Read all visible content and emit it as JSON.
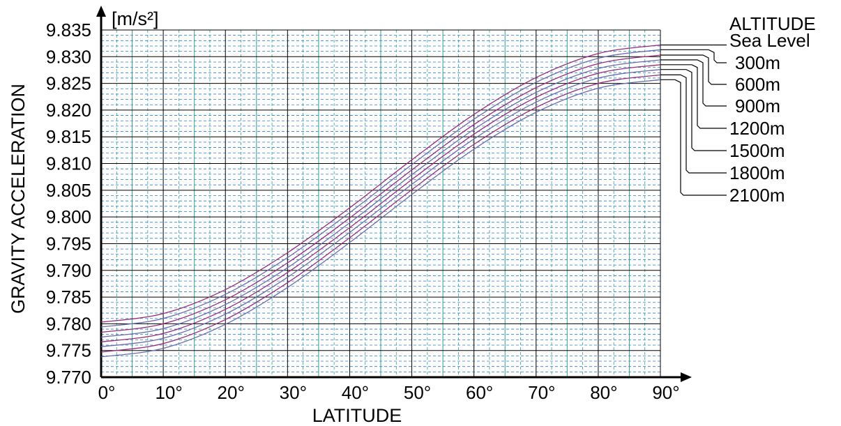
{
  "chart_data": {
    "type": "line",
    "ylabel": "GRAVITY ACCELERATION",
    "yunit": "[m/s²]",
    "xlabel": "LATITUDE",
    "legend_title": "ALTITUDE",
    "legend_position": "right",
    "xlim": [
      0,
      90
    ],
    "ylim": [
      9.77,
      9.835
    ],
    "grid": true,
    "x_ticks": [
      0,
      10,
      20,
      30,
      40,
      50,
      60,
      70,
      80,
      90
    ],
    "x_tick_labels": [
      "0°",
      "10°",
      "20°",
      "30°",
      "40°",
      "50°",
      "60°",
      "70°",
      "80°",
      "90°"
    ],
    "y_ticks": [
      9.77,
      9.775,
      9.78,
      9.785,
      9.79,
      9.795,
      9.8,
      9.805,
      9.81,
      9.815,
      9.82,
      9.825,
      9.83,
      9.835
    ],
    "y_tick_labels": [
      "9.770",
      "9.775",
      "9.780",
      "9.785",
      "9.790",
      "9.795",
      "9.800",
      "9.805",
      "9.810",
      "9.815",
      "9.820",
      "9.825",
      "9.830",
      "9.835"
    ],
    "x": [
      0,
      10,
      20,
      30,
      40,
      50,
      60,
      70,
      80,
      90
    ],
    "series": [
      {
        "name": "Sea Level",
        "values": [
          9.7803,
          9.7819,
          9.7864,
          9.7933,
          9.8017,
          9.8107,
          9.8192,
          9.8261,
          9.8306,
          9.8322
        ]
      },
      {
        "name": "300m",
        "values": [
          9.7794,
          9.781,
          9.7855,
          9.7924,
          9.8008,
          9.8098,
          9.8183,
          9.8252,
          9.8297,
          9.8313
        ]
      },
      {
        "name": "600m",
        "values": [
          9.7784,
          9.78,
          9.7845,
          9.7914,
          9.7998,
          9.8088,
          9.8173,
          9.8242,
          9.8287,
          9.8303
        ]
      },
      {
        "name": "900m",
        "values": [
          9.7775,
          9.7791,
          9.7836,
          9.7905,
          9.7989,
          9.8079,
          9.8164,
          9.8233,
          9.8278,
          9.8294
        ]
      },
      {
        "name": "1200m",
        "values": [
          9.7766,
          9.7782,
          9.7827,
          9.7896,
          9.798,
          9.807,
          9.8155,
          9.8224,
          9.8269,
          9.8285
        ]
      },
      {
        "name": "1500m",
        "values": [
          9.7757,
          9.7773,
          9.7818,
          9.7887,
          9.7971,
          9.8061,
          9.8146,
          9.8215,
          9.826,
          9.8276
        ]
      },
      {
        "name": "1800m",
        "values": [
          9.7747,
          9.7763,
          9.7808,
          9.7877,
          9.7961,
          9.8051,
          9.8136,
          9.8205,
          9.825,
          9.8266
        ]
      },
      {
        "name": "2100m",
        "values": [
          9.7738,
          9.7754,
          9.7799,
          9.7868,
          9.7952,
          9.8042,
          9.8127,
          9.8196,
          9.8241,
          9.8257
        ]
      }
    ],
    "colors": {
      "major_grid": "#000000",
      "mid_grid": "#2aa198",
      "minor_grid": "#2a7fd0",
      "curve_a": "#9a2a7a",
      "curve_b": "#6a6ab0"
    }
  }
}
